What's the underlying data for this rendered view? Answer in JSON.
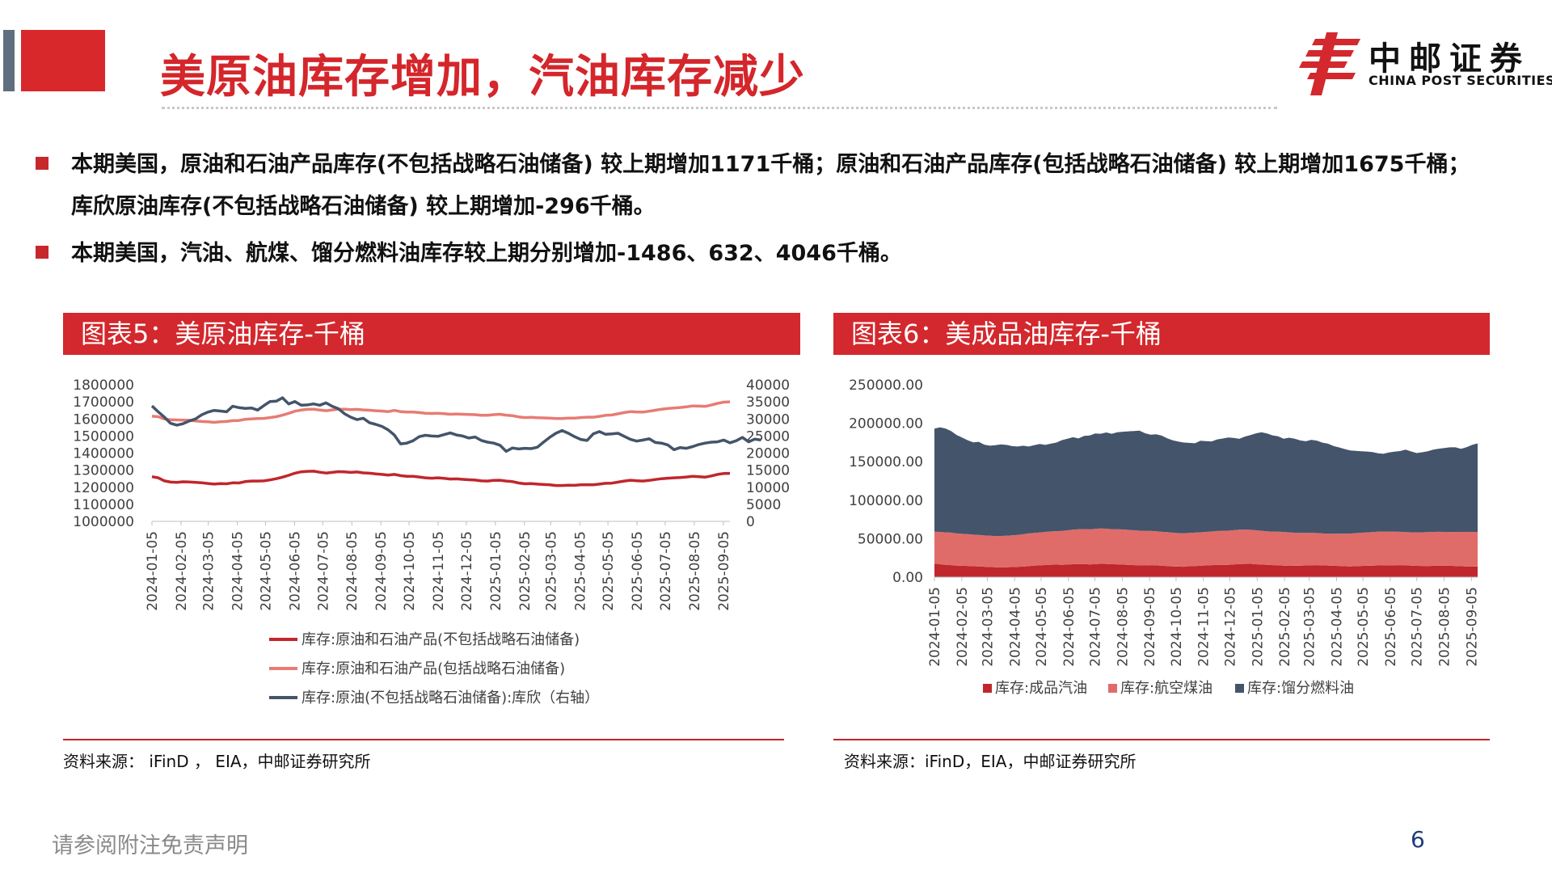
{
  "header": {
    "title": "美原油库存增加，汽油库存减少",
    "logo_cn": "中邮证券",
    "logo_en": "CHINA POST SECURITIES"
  },
  "bullets": [
    "本期美国，原油和石油产品库存(不包括战略石油储备) 较上期增加1171千桶；原油和石油产品库存(包括战略石油储备) 较上期增加1675千桶；库欣原油库存(不包括战略石油储备) 较上期增加-296千桶。",
    "本期美国，汽油、航煤、馏分燃料油库存较上期分别增加-1486、632、4046千桶。"
  ],
  "charts": {
    "left": {
      "header": "图表5：美原油库存-千桶",
      "source": "资料来源： iFinD ， EIA，中邮证券研究所"
    },
    "right": {
      "header": "图表6：美成品油库存-千桶",
      "source": "资料来源：iFinD，EIA，中邮证券研究所"
    }
  },
  "footer": {
    "disclaimer": "请参阅附注免责声明",
    "page": "6"
  },
  "colors": {
    "brand_red": "#d3282d",
    "series_dark_red": "#c0272c",
    "series_salmon": "#e87b74",
    "series_navy": "#44546a",
    "area_gasoline": "#c0272c",
    "area_jetfuel": "#e06c6a",
    "area_distillate": "#44546a"
  },
  "chart_data": [
    {
      "type": "line",
      "x_ticks": [
        "2024-01-05",
        "2024-02-05",
        "2024-03-05",
        "2024-04-05",
        "2024-05-05",
        "2024-06-05",
        "2024-07-05",
        "2024-08-05",
        "2024-09-05",
        "2024-10-05",
        "2024-11-05",
        "2024-12-05",
        "2025-01-05",
        "2025-02-05",
        "2025-03-05",
        "2025-04-05",
        "2025-05-05",
        "2025-06-05",
        "2025-07-05",
        "2025-08-05",
        "2025-09-05"
      ],
      "x_range": [
        "2024-01-05",
        "2025-09-12"
      ],
      "y_left": {
        "ylim": [
          1000000,
          1800000
        ],
        "ticks": [
          "1000000",
          "1100000",
          "1200000",
          "1300000",
          "1400000",
          "1500000",
          "1600000",
          "1700000",
          "1800000"
        ]
      },
      "y_right": {
        "ylim": [
          0,
          40000
        ],
        "ticks": [
          "0",
          "5000",
          "10000",
          "15000",
          "20000",
          "25000",
          "30000",
          "35000",
          "40000"
        ]
      },
      "grid": false,
      "legend_position": "bottom",
      "series": [
        {
          "name": "库存:原油和石油产品(不包括战略石油储备)",
          "axis": "left",
          "color": "#c0272c",
          "values": [
            1262000,
            1255000,
            1237000,
            1230000,
            1228000,
            1232000,
            1231000,
            1228000,
            1226000,
            1222000,
            1218000,
            1221000,
            1220000,
            1226000,
            1225000,
            1233000,
            1236000,
            1236000,
            1237000,
            1243000,
            1250000,
            1259000,
            1270000,
            1282000,
            1290000,
            1293000,
            1294000,
            1288000,
            1283000,
            1287000,
            1291000,
            1290000,
            1287000,
            1289000,
            1284000,
            1282000,
            1278000,
            1275000,
            1271000,
            1275000,
            1268000,
            1264000,
            1264000,
            1260000,
            1255000,
            1253000,
            1255000,
            1252000,
            1248000,
            1249000,
            1246000,
            1244000,
            1242000,
            1237000,
            1236000,
            1240000,
            1241000,
            1236000,
            1233000,
            1225000,
            1220000,
            1221000,
            1218000,
            1216000,
            1214000,
            1210000,
            1210000,
            1212000,
            1211000,
            1214000,
            1215000,
            1214000,
            1218000,
            1223000,
            1224000,
            1230000,
            1236000,
            1241000,
            1238000,
            1236000,
            1240000,
            1245000,
            1250000,
            1253000,
            1255000,
            1257000,
            1260000,
            1264000,
            1262000,
            1259000,
            1266000,
            1275000,
            1280000,
            1281000
          ]
        },
        {
          "name": "库存:原油和石油产品(包括战略石油储备)",
          "axis": "left",
          "color": "#e87b74",
          "values": [
            1616000,
            1613000,
            1600000,
            1595000,
            1594000,
            1593000,
            1592000,
            1588000,
            1585000,
            1583000,
            1580000,
            1583000,
            1585000,
            1590000,
            1591000,
            1598000,
            1600000,
            1602000,
            1603000,
            1608000,
            1613000,
            1622000,
            1633000,
            1645000,
            1652000,
            1656000,
            1657000,
            1652000,
            1648000,
            1653000,
            1657000,
            1657000,
            1654000,
            1656000,
            1653000,
            1651000,
            1648000,
            1646000,
            1643000,
            1650000,
            1643000,
            1640000,
            1640000,
            1637000,
            1633000,
            1632000,
            1633000,
            1631000,
            1627000,
            1629000,
            1627000,
            1626000,
            1625000,
            1621000,
            1621000,
            1625000,
            1627000,
            1622000,
            1619000,
            1612000,
            1608000,
            1609000,
            1607000,
            1606000,
            1605000,
            1602000,
            1602000,
            1605000,
            1605000,
            1608000,
            1610000,
            1610000,
            1615000,
            1621000,
            1623000,
            1630000,
            1637000,
            1643000,
            1641000,
            1640000,
            1645000,
            1651000,
            1657000,
            1661000,
            1664000,
            1667000,
            1671000,
            1676000,
            1675000,
            1673000,
            1681000,
            1691000,
            1698000,
            1700000
          ]
        },
        {
          "name": "库存:原油(不包括战略石油储备):库欣（右轴）",
          "axis": "right",
          "color": "#44546a",
          "values": [
            33800,
            32100,
            30500,
            28700,
            28200,
            28600,
            29400,
            30000,
            31200,
            32000,
            32500,
            32300,
            32100,
            33700,
            33300,
            33100,
            33200,
            32600,
            33900,
            35100,
            35200,
            36200,
            34400,
            35100,
            34000,
            34100,
            34400,
            34000,
            34700,
            33700,
            33000,
            31500,
            30500,
            29800,
            30200,
            28900,
            28400,
            27800,
            26800,
            25300,
            22700,
            22900,
            23600,
            24800,
            25200,
            25000,
            24900,
            25400,
            25900,
            25300,
            25000,
            24400,
            24700,
            23700,
            23200,
            22900,
            22300,
            20500,
            21500,
            21200,
            21400,
            21300,
            21700,
            23200,
            24600,
            25800,
            26600,
            25800,
            24800,
            24000,
            23700,
            25600,
            26300,
            25500,
            25600,
            25800,
            24900,
            24000,
            23500,
            23800,
            24200,
            23100,
            22900,
            22400,
            21000,
            21600,
            21400,
            21900,
            22500,
            22900,
            23200,
            23300,
            23800,
            23000,
            23600,
            24600,
            23300,
            24100,
            23800
          ]
        }
      ]
    },
    {
      "type": "area",
      "stacked": true,
      "x_ticks": [
        "2024-01-05",
        "2024-02-05",
        "2024-03-05",
        "2024-04-05",
        "2024-05-05",
        "2024-06-05",
        "2024-07-05",
        "2024-08-05",
        "2024-09-05",
        "2024-10-05",
        "2024-11-05",
        "2024-12-05",
        "2025-01-05",
        "2025-02-05",
        "2025-03-05",
        "2025-04-05",
        "2025-05-05",
        "2025-06-05",
        "2025-07-05",
        "2025-08-05",
        "2025-09-05"
      ],
      "x_range": [
        "2024-01-05",
        "2025-09-12"
      ],
      "ylim": [
        0,
        250000
      ],
      "y_ticks": [
        "0.00",
        "50000.00",
        "100000.00",
        "150000.00",
        "200000.00",
        "250000.00"
      ],
      "grid": false,
      "legend_position": "bottom",
      "series": [
        {
          "name": "库存:成品汽油",
          "color": "#c0272c",
          "values": [
            17500,
            16800,
            16000,
            15600,
            15000,
            14800,
            14600,
            14200,
            14000,
            13500,
            13200,
            12800,
            12700,
            12900,
            13100,
            13300,
            13800,
            14400,
            14900,
            15300,
            15800,
            16200,
            16300,
            16000,
            16400,
            16800,
            17100,
            17000,
            16500,
            16900,
            17300,
            17200,
            16800,
            16700,
            16300,
            16000,
            15600,
            15400,
            15200,
            15600,
            15300,
            14800,
            14500,
            14000,
            13800,
            13600,
            14300,
            14500,
            14800,
            15200,
            15600,
            16000,
            15900,
            16100,
            16500,
            17000,
            17200,
            17300,
            16800,
            16400,
            16000,
            15700,
            15500,
            15000,
            14700,
            14800,
            14900,
            15200,
            15400,
            15600,
            15300,
            15100,
            14800,
            14600,
            14200,
            14000,
            14300,
            14600,
            14800,
            15000,
            15200,
            15300,
            15400,
            15500,
            15600,
            15400,
            15000,
            14700,
            14600,
            14500,
            14700,
            14900,
            15000,
            14800,
            14500,
            14200,
            14000,
            13900,
            13800
          ]
        },
        {
          "name": "库存:航空煤油",
          "color": "#e06c6a",
          "values": [
            41500,
            42000,
            42200,
            42300,
            41800,
            41500,
            41300,
            41000,
            40800,
            40700,
            40600,
            40700,
            40900,
            41000,
            41200,
            41500,
            42000,
            42400,
            42600,
            42800,
            43000,
            43200,
            43600,
            44000,
            44500,
            45000,
            45200,
            45500,
            45600,
            45800,
            46000,
            45800,
            45500,
            45600,
            45700,
            45500,
            45300,
            45000,
            44800,
            44600,
            44300,
            44100,
            44000,
            43800,
            43500,
            43300,
            43200,
            43400,
            43500,
            43600,
            43800,
            44000,
            44200,
            44300,
            44500,
            44700,
            44500,
            44300,
            44100,
            43900,
            43700,
            43500,
            43600,
            43800,
            43500,
            43000,
            42700,
            42400,
            42100,
            41800,
            41500,
            41300,
            41600,
            42000,
            42300,
            42600,
            42900,
            43100,
            43400,
            43600,
            43800,
            44000,
            43700,
            43500,
            43300,
            43200,
            43300,
            43500,
            43700,
            44000,
            44100,
            44000,
            43800,
            43900,
            44200,
            44600,
            44800,
            44900,
            45000
          ]
        },
        {
          "name": "库存:馏分燃料油",
          "color": "#44546a",
          "values": [
            134000,
            136000,
            135000,
            132000,
            128000,
            125000,
            122000,
            120000,
            121000,
            118000,
            117000,
            118000,
            119000,
            118000,
            116000,
            115000,
            115000,
            113000,
            114000,
            115000,
            113000,
            114000,
            115000,
            118000,
            119000,
            120000,
            118000,
            121000,
            122000,
            124000,
            123000,
            125000,
            124000,
            126000,
            127000,
            128000,
            129000,
            130000,
            127000,
            125000,
            126000,
            125000,
            122000,
            120000,
            119000,
            118000,
            117000,
            116000,
            119000,
            118000,
            117000,
            119000,
            120000,
            121000,
            120000,
            118000,
            121000,
            123000,
            126000,
            128000,
            127000,
            125000,
            124000,
            121000,
            123000,
            122000,
            120000,
            119000,
            121000,
            120000,
            118000,
            117000,
            114000,
            112000,
            110000,
            108000,
            107000,
            106000,
            105000,
            104000,
            102000,
            101000,
            103000,
            104000,
            105000,
            107000,
            105000,
            103000,
            104000,
            105000,
            107000,
            108000,
            109000,
            110000,
            110000,
            108000,
            110000,
            113000,
            115000
          ]
        }
      ]
    }
  ]
}
